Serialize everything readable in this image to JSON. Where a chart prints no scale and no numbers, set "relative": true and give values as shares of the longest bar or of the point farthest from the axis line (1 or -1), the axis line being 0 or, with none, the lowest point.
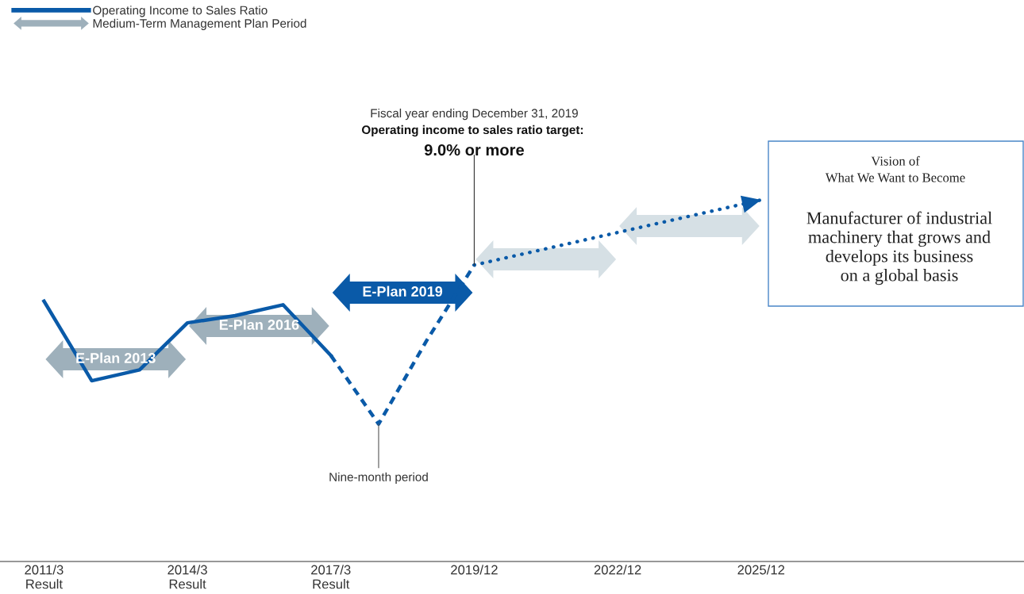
{
  "chart_data": {
    "type": "line",
    "relative": true,
    "legend": "top left",
    "categories": [
      "2011/3\nResult",
      null,
      null,
      "2014/3\nResult",
      null,
      null,
      "2017/3\nResult",
      null,
      null,
      "2019/12",
      null,
      null,
      "2022/12",
      null,
      null,
      "2025/12"
    ],
    "series": [
      {
        "name": "Operating Income to Sales Ratio",
        "line_style": "solid",
        "color": "#0a5aa8",
        "values": [
          0.72,
          0.5,
          0.53,
          0.66,
          0.68,
          0.71,
          0.57,
          null,
          null,
          null,
          null,
          null,
          null,
          null,
          null,
          null
        ]
      },
      {
        "line_style": "dashed",
        "color": "#0a5aa8",
        "values": [
          null,
          null,
          null,
          null,
          null,
          null,
          0.57,
          0.38,
          0.61,
          0.82,
          null,
          null,
          null,
          null,
          null,
          null
        ]
      },
      {
        "line_style": "dotted",
        "color": "#0a5aa8",
        "values": [
          null,
          null,
          null,
          null,
          null,
          null,
          null,
          null,
          null,
          0.82,
          null,
          null,
          null,
          null,
          null,
          1.0
        ]
      }
    ],
    "annotations": [
      "Fiscal year ending December 31, 2019",
      "Operating income to sales ratio target:",
      "9.0% or more",
      "Nine-month period",
      "Vision of\nWhat We Want to Become",
      "Manufacturer of industrial\nmachinery that grows and\ndevelops its business\non a global basis",
      "Medium-Term Management Plan Period",
      "E-Plan 2013",
      "E-Plan 2016",
      "E-Plan 2019"
    ]
  }
}
